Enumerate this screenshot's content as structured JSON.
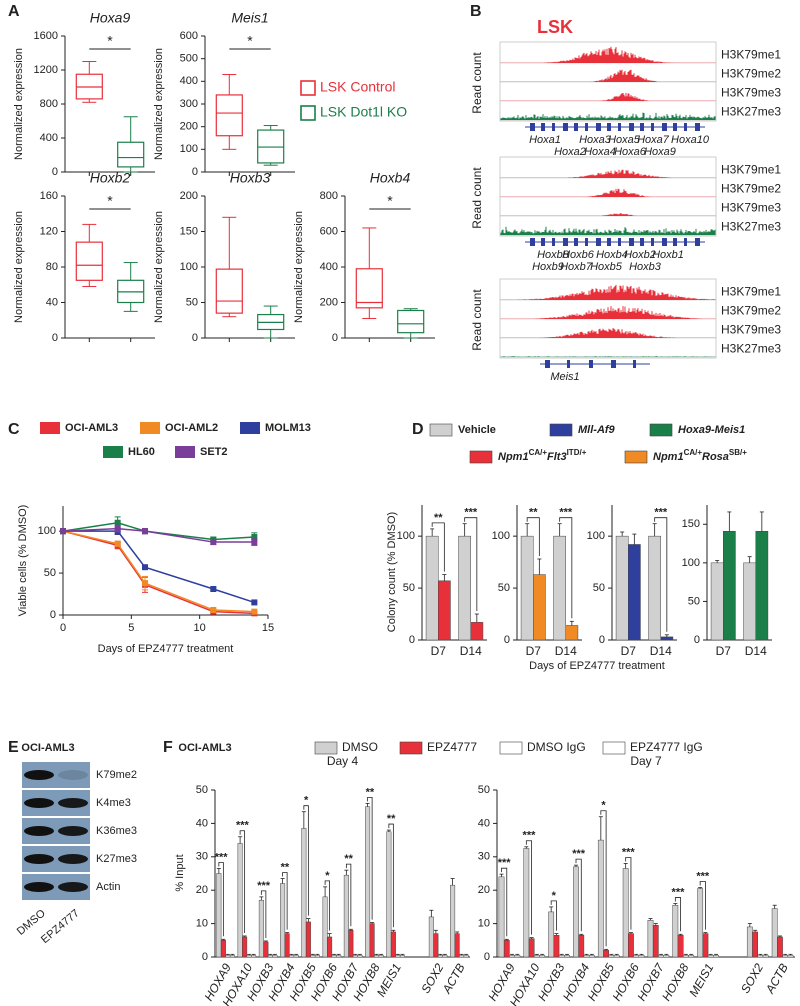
{
  "panel_labels": [
    "A",
    "B",
    "C",
    "D",
    "E",
    "F"
  ],
  "panel_a": {
    "legend": [
      {
        "name": "LSK Control",
        "color": "#e8303a"
      },
      {
        "name": "LSK Dot1l KO",
        "color": "#1b7f4a"
      }
    ]
  },
  "panel_b": {
    "title": "LSK",
    "groups": [
      {
        "y_label": "Read count",
        "tracks": [
          "H3K79me1",
          "H3K79me2",
          "H3K79me3",
          "H3K27me3"
        ],
        "genes": [
          [
            "Hoxa1",
            "Hoxa3",
            "Hoxa5",
            "Hoxa7",
            "Hoxa10"
          ],
          [
            "Hoxa2",
            "Hoxa4",
            "Hoxa6",
            "Hoxa9"
          ]
        ]
      },
      {
        "y_label": "Read count",
        "tracks": [
          "H3K79me1",
          "H3K79me2",
          "H3K79me3",
          "H3K27me3"
        ],
        "genes": [
          [
            "Hoxb8",
            "Hoxb6",
            "Hoxb4",
            "Hoxb2",
            "Hoxb1"
          ],
          [
            "Hoxb9",
            "Hoxb7",
            "Hoxb5",
            "Hoxb3"
          ]
        ]
      },
      {
        "y_label": "Read count",
        "tracks": [
          "H3K79me1",
          "H3K79me2",
          "H3K79me3",
          "H3K27me3"
        ],
        "genes": [
          [
            "Meis1"
          ]
        ]
      }
    ]
  },
  "panel_d": {
    "x_label": "Days of EPZ4777 treatment",
    "y_label": "Colony count (% DMSO)",
    "legend": [
      {
        "color": "#d0d0d0",
        "parts": [
          {
            "text": "Vehicle"
          }
        ]
      },
      {
        "color": "#2e3f9e",
        "parts": [
          {
            "text": "Mll-Af9"
          }
        ]
      },
      {
        "color": "#1b7f4a",
        "parts": [
          {
            "text": "Hoxa9-Meis1"
          }
        ]
      },
      {
        "color": "#e8303a",
        "parts": [
          {
            "text": "Npm1"
          },
          {
            "text": "CA/+",
            "sup": true
          },
          {
            "text": "Flt3"
          },
          {
            "text": "ITD/+",
            "sup": true
          }
        ]
      },
      {
        "color": "#f08a24",
        "parts": [
          {
            "text": "Npm1"
          },
          {
            "text": "CA/+",
            "sup": true
          },
          {
            "text": "Rosa"
          },
          {
            "text": "SB/+",
            "sup": true
          }
        ]
      }
    ]
  },
  "panel_e": {
    "title": "OCI-AML3",
    "bands": [
      "K79me2",
      "K4me3",
      "K36me3",
      "K27me3",
      "Actin"
    ],
    "lanes": [
      "DMSO",
      "EPZ4777"
    ]
  },
  "panel_f": {
    "title": "OCI-AML3",
    "y_label": "% Input",
    "legend": [
      {
        "name": "DMSO",
        "color": "#d0d0d0"
      },
      {
        "name": "EPZ4777",
        "color": "#e8303a"
      },
      {
        "name": "DMSO IgG",
        "color": "#ffffff"
      },
      {
        "name": "EPZ4777 IgG",
        "color": "#ffffff"
      }
    ]
  },
  "chart_data": [
    {
      "type": "box",
      "title": "Hoxa9",
      "y_label": "Normalized expression",
      "ylim": [
        0,
        1600
      ],
      "yticks": [
        0,
        400,
        800,
        1200,
        1600
      ],
      "boxes": [
        {
          "min": 820,
          "q1": 860,
          "median": 1000,
          "q3": 1150,
          "max": 1300
        },
        {
          "min": 0,
          "q1": 60,
          "median": 170,
          "q3": 350,
          "max": 650
        }
      ],
      "significance": "*"
    },
    {
      "type": "box",
      "title": "Meis1",
      "y_label": "Normalized expression",
      "ylim": [
        0,
        600
      ],
      "yticks": [
        0,
        100,
        200,
        300,
        400,
        500,
        600
      ],
      "boxes": [
        {
          "min": 100,
          "q1": 160,
          "median": 260,
          "q3": 340,
          "max": 430
        },
        {
          "min": 30,
          "q1": 40,
          "median": 110,
          "q3": 185,
          "max": 205
        }
      ],
      "significance": "*"
    },
    {
      "type": "box",
      "title": "Hoxb2",
      "y_label": "Normalized expression",
      "ylim": [
        0,
        160
      ],
      "yticks": [
        0,
        40,
        80,
        120,
        160
      ],
      "boxes": [
        {
          "min": 58,
          "q1": 65,
          "median": 82,
          "q3": 108,
          "max": 128
        },
        {
          "min": 30,
          "q1": 40,
          "median": 52,
          "q3": 65,
          "max": 85
        }
      ],
      "significance": "*"
    },
    {
      "type": "box",
      "title": "Hoxb3",
      "y_label": "Normalized expression",
      "ylim": [
        0,
        200
      ],
      "yticks": [
        0,
        50,
        100,
        150,
        200
      ],
      "boxes": [
        {
          "min": 30,
          "q1": 35,
          "median": 52,
          "q3": 97,
          "max": 170
        },
        {
          "min": 0,
          "q1": 12,
          "median": 22,
          "q3": 33,
          "max": 45
        }
      ]
    },
    {
      "type": "box",
      "title": "Hoxb4",
      "y_label": "Normalized expression",
      "ylim": [
        0,
        800
      ],
      "yticks": [
        0,
        200,
        400,
        600,
        800
      ],
      "boxes": [
        {
          "min": 110,
          "q1": 170,
          "median": 200,
          "q3": 390,
          "max": 620
        },
        {
          "min": 0,
          "q1": 30,
          "median": 80,
          "q3": 155,
          "max": 165
        }
      ],
      "significance": "*"
    },
    {
      "type": "line",
      "x_label": "Days of EPZ4777 treatment",
      "y_label": "Viable cells (% DMSO)",
      "x": [
        0,
        4,
        6,
        11,
        14
      ],
      "xlim": [
        0,
        15
      ],
      "xticks": [
        0,
        5,
        10,
        15
      ],
      "ylim": [
        0,
        130
      ],
      "yticks": [
        0,
        50,
        100
      ],
      "series": [
        {
          "name": "OCI-AML3",
          "color": "#e8303a",
          "values": [
            100,
            83,
            36,
            4,
            2
          ],
          "errors": [
            2,
            4,
            9,
            1,
            1
          ]
        },
        {
          "name": "OCI-AML2",
          "color": "#f08a24",
          "values": [
            100,
            85,
            38,
            6,
            4
          ],
          "errors": [
            2,
            3,
            8,
            1,
            1
          ]
        },
        {
          "name": "MOLM13",
          "color": "#2e3f9e",
          "values": [
            100,
            100,
            57,
            31,
            15
          ],
          "errors": [
            2,
            4,
            2,
            2,
            1
          ]
        },
        {
          "name": "HL60",
          "color": "#1b7f4a",
          "values": [
            100,
            110,
            100,
            90,
            93
          ],
          "errors": [
            2,
            7,
            3,
            3,
            5
          ]
        },
        {
          "name": "SET2",
          "color": "#7a3d9a",
          "values": [
            100,
            103,
            100,
            87,
            87
          ],
          "errors": [
            2,
            4,
            3,
            3,
            4
          ]
        }
      ]
    },
    {
      "type": "bar",
      "categories": [
        "D7",
        "D14"
      ],
      "ylim": [
        0,
        130
      ],
      "yticks": [
        0,
        50,
        100
      ],
      "series": [
        {
          "color": "#d0d0d0",
          "values": [
            100,
            100
          ],
          "errors": [
            7,
            12
          ]
        },
        {
          "color": "#e8303a",
          "values": [
            57,
            17
          ],
          "errors": [
            6,
            8
          ]
        }
      ],
      "significance": [
        "**",
        "***"
      ]
    },
    {
      "type": "bar",
      "categories": [
        "D7",
        "D14"
      ],
      "ylim": [
        0,
        130
      ],
      "yticks": [
        0,
        50,
        100
      ],
      "series": [
        {
          "color": "#d0d0d0",
          "values": [
            100,
            100
          ],
          "errors": [
            12,
            12
          ]
        },
        {
          "color": "#f08a24",
          "values": [
            63,
            14
          ],
          "errors": [
            15,
            4
          ]
        }
      ],
      "significance": [
        "**",
        "***"
      ]
    },
    {
      "type": "bar",
      "categories": [
        "D7",
        "D14"
      ],
      "ylim": [
        0,
        130
      ],
      "yticks": [
        0,
        50,
        100
      ],
      "series": [
        {
          "color": "#d0d0d0",
          "values": [
            100,
            100
          ],
          "errors": [
            4,
            12
          ]
        },
        {
          "color": "#2e3f9e",
          "values": [
            92,
            3
          ],
          "errors": [
            10,
            2
          ]
        }
      ],
      "significance": [
        null,
        "***"
      ]
    },
    {
      "type": "bar",
      "categories": [
        "D7",
        "D14"
      ],
      "ylim": [
        0,
        175
      ],
      "yticks": [
        0,
        50,
        100,
        150
      ],
      "series": [
        {
          "color": "#d0d0d0",
          "values": [
            100,
            100
          ],
          "errors": [
            3,
            8
          ]
        },
        {
          "color": "#1b7f4a",
          "values": [
            141,
            141
          ],
          "errors": [
            25,
            25
          ]
        }
      ]
    },
    {
      "type": "bar",
      "title": "Day 4",
      "ylim": [
        0,
        50
      ],
      "yticks": [
        0,
        10,
        20,
        30,
        40,
        50
      ],
      "categories": [
        "HOXA9",
        "HOXA10",
        "HOXB3",
        "HOXB4",
        "HOXB5",
        "HOXB6",
        "HOXB7",
        "HOXB8",
        "MEIS1",
        null,
        "SOX2",
        "ACTB"
      ],
      "series": [
        {
          "color": "#d0d0d0",
          "values": [
            25,
            34,
            17,
            22,
            38.5,
            18,
            24.5,
            45,
            37.5,
            null,
            12,
            21.5
          ],
          "errors": [
            1.5,
            2,
            1,
            1.5,
            5,
            3,
            1.5,
            1,
            0.5,
            null,
            2,
            2
          ]
        },
        {
          "color": "#e8303a",
          "values": [
            5,
            6,
            4.5,
            7,
            10.5,
            6,
            8,
            10,
            7.5,
            null,
            7,
            7
          ],
          "errors": [
            0.3,
            0.3,
            0.3,
            0.3,
            1,
            1,
            0.3,
            0.3,
            0.5,
            null,
            1,
            0.5
          ]
        },
        {
          "color": "#ffffff",
          "values": [
            0.5,
            0.5,
            0.5,
            0.5,
            0.5,
            0.5,
            0.5,
            0.5,
            0.5,
            null,
            0.5,
            0.5
          ],
          "errors": [
            0.3,
            0.3,
            0.3,
            0.3,
            0.3,
            0.3,
            0.3,
            0.3,
            0.3,
            null,
            0.3,
            0.3
          ]
        },
        {
          "color": "#ffffff",
          "values": [
            0.5,
            0.5,
            0.5,
            0.5,
            0.5,
            0.5,
            0.5,
            0.5,
            0.5,
            null,
            0.5,
            0.5
          ],
          "errors": [
            0.3,
            0.3,
            0.3,
            0.3,
            0.3,
            0.3,
            0.3,
            0.3,
            0.3,
            null,
            0.3,
            0.3
          ]
        }
      ],
      "significance": [
        "***",
        "***",
        "***",
        "**",
        "*",
        "*",
        "**",
        "**",
        "**",
        null,
        null,
        null
      ]
    },
    {
      "type": "bar",
      "title": "Day 7",
      "ylim": [
        0,
        50
      ],
      "yticks": [
        0,
        10,
        20,
        30,
        40,
        50
      ],
      "categories": [
        "HOXA9",
        "HOXA10",
        "HOXB3",
        "HOXB4",
        "HOXB5",
        "HOXB6",
        "HOXB7",
        "HOXB8",
        "MEIS1",
        null,
        "SOX2",
        "ACTB"
      ],
      "series": [
        {
          "color": "#d0d0d0",
          "values": [
            24,
            32.5,
            13.5,
            27,
            35,
            26.5,
            11,
            15.5,
            20.5,
            null,
            9,
            14.5
          ],
          "errors": [
            0.8,
            0.5,
            1.5,
            0.5,
            7,
            1.5,
            0.5,
            0.5,
            0.3,
            null,
            1,
            1
          ]
        },
        {
          "color": "#e8303a",
          "values": [
            5,
            5.5,
            6.5,
            6.5,
            2,
            7,
            9.5,
            6.5,
            7,
            null,
            7.5,
            6
          ],
          "errors": [
            0.3,
            0.3,
            0.5,
            0.3,
            0.3,
            0.3,
            0.5,
            0.3,
            0.3,
            null,
            0.5,
            0.3
          ]
        },
        {
          "color": "#ffffff",
          "values": [
            0.5,
            0.5,
            0.5,
            0.5,
            0.5,
            0.5,
            0.5,
            0.5,
            0.5,
            null,
            0.5,
            0.5
          ],
          "errors": [
            0.3,
            0.3,
            0.3,
            0.3,
            0.3,
            0.3,
            0.3,
            0.3,
            0.3,
            null,
            0.3,
            0.3
          ]
        },
        {
          "color": "#ffffff",
          "values": [
            0.5,
            0.5,
            0.5,
            0.5,
            0.5,
            0.5,
            0.5,
            0.5,
            0.5,
            null,
            0.5,
            0.5
          ],
          "errors": [
            0.3,
            0.3,
            0.3,
            0.3,
            0.3,
            0.3,
            0.3,
            0.3,
            0.3,
            null,
            0.3,
            0.3
          ]
        }
      ],
      "significance": [
        "***",
        "***",
        "*",
        "***",
        "*",
        "***",
        null,
        "***",
        "***",
        null,
        null,
        null
      ]
    }
  ]
}
